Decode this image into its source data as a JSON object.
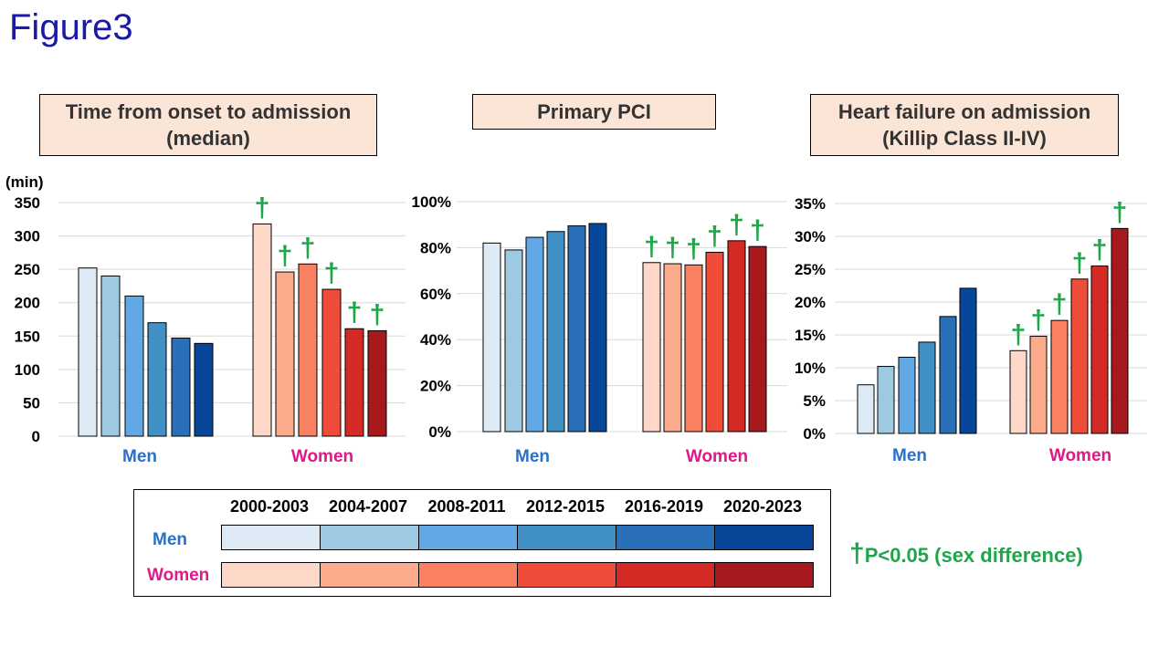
{
  "figure_title": "Figure3",
  "colors": {
    "men": [
      "#deebf7",
      "#9ecae1",
      "#62a8e5",
      "#4190c6",
      "#2a70b8",
      "#08469a"
    ],
    "women": [
      "#fdd7c8",
      "#fbab8c",
      "#f98060",
      "#ef4d3a",
      "#d32a26",
      "#a61a1e"
    ],
    "men_label": "#2a70c8",
    "women_label": "#e0188a",
    "dagger": "#1fa64a"
  },
  "dagger_symbol": "†",
  "chart_data": [
    {
      "type": "bar",
      "title": "Time from onset to admission (median)",
      "title_lines": [
        "Time from onset to admission",
        "(median)"
      ],
      "ylabel": "(min)",
      "ylim": [
        0,
        350
      ],
      "yticks": [
        0,
        50,
        100,
        150,
        200,
        250,
        300,
        350
      ],
      "ytick_labels": [
        "0",
        "50",
        "100",
        "150",
        "200",
        "250",
        "300",
        "350"
      ],
      "groups": [
        "Men",
        "Women"
      ],
      "series_names": [
        "2000-2003",
        "2004-2007",
        "2008-2011",
        "2012-2015",
        "2016-2019",
        "2020-2023"
      ],
      "values": {
        "Men": [
          252,
          240,
          210,
          170,
          147,
          139
        ],
        "Women": [
          318,
          246,
          258,
          220,
          161,
          158
        ]
      },
      "significant": {
        "Men": [
          false,
          false,
          false,
          false,
          false,
          false
        ],
        "Women": [
          true,
          true,
          true,
          true,
          true,
          true
        ]
      }
    },
    {
      "type": "bar",
      "title": "Primary PCI",
      "title_lines": [
        "Primary PCI"
      ],
      "ylabel": "",
      "ylim": [
        0,
        100
      ],
      "yticks": [
        0,
        20,
        40,
        60,
        80,
        100
      ],
      "ytick_labels": [
        "0%",
        "20%",
        "40%",
        "60%",
        "80%",
        "100%"
      ],
      "groups": [
        "Men",
        "Women"
      ],
      "series_names": [
        "2000-2003",
        "2004-2007",
        "2008-2011",
        "2012-2015",
        "2016-2019",
        "2020-2023"
      ],
      "values": {
        "Men": [
          82,
          79,
          84.5,
          87,
          89.5,
          90.5
        ],
        "Women": [
          73.5,
          73,
          72.5,
          78,
          83,
          80.5
        ]
      },
      "significant": {
        "Men": [
          false,
          false,
          false,
          false,
          false,
          false
        ],
        "Women": [
          true,
          true,
          true,
          true,
          true,
          true
        ]
      }
    },
    {
      "type": "bar",
      "title": "Heart failure on admission (Killip Class II-IV)",
      "title_lines": [
        "Heart failure on admission",
        "(Killip Class II-IV)"
      ],
      "ylabel": "",
      "ylim": [
        0,
        35
      ],
      "yticks": [
        0,
        5,
        10,
        15,
        20,
        25,
        30,
        35
      ],
      "ytick_labels": [
        "0%",
        "5%",
        "10%",
        "15%",
        "20%",
        "25%",
        "30%",
        "35%"
      ],
      "groups": [
        "Men",
        "Women"
      ],
      "series_names": [
        "2000-2003",
        "2004-2007",
        "2008-2011",
        "2012-2015",
        "2016-2019",
        "2020-2023"
      ],
      "values": {
        "Men": [
          7.4,
          10.2,
          11.6,
          13.9,
          17.8,
          22.1
        ],
        "Women": [
          12.6,
          14.8,
          17.2,
          23.5,
          25.5,
          31.2
        ]
      },
      "significant": {
        "Men": [
          false,
          false,
          false,
          false,
          false,
          false
        ],
        "Women": [
          true,
          true,
          true,
          true,
          true,
          true
        ]
      }
    }
  ],
  "legend": {
    "periods": [
      "2000-2003",
      "2004-2007",
      "2008-2011",
      "2012-2015",
      "2016-2019",
      "2020-2023"
    ],
    "men_label": "Men",
    "women_label": "Women"
  },
  "significance_note": "P<0.05 (sex difference)"
}
